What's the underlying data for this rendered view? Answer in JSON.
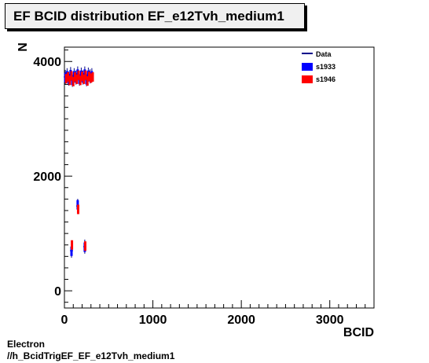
{
  "title": "EF BCID distribution EF_e12Tvh_medium1",
  "footer": {
    "line1": "Electron",
    "line2": "//h_BcidTrigEF_EF_e12Tvh_medium1"
  },
  "chart_data": {
    "type": "scatter",
    "title": "EF BCID distribution EF_e12Tvh_medium1",
    "xlabel": "BCID",
    "ylabel": "N",
    "xlim": [
      0,
      3500
    ],
    "ylim": [
      -300,
      4250
    ],
    "xticks": [
      0,
      1000,
      2000,
      3000
    ],
    "yticks": [
      0,
      2000,
      4000
    ],
    "legend": "top-right",
    "series": [
      {
        "name": "Data",
        "color": "#00008b",
        "style": "line-errorbar",
        "points": [
          {
            "x": 10,
            "y": 3730
          },
          {
            "x": 30,
            "y": 3760
          },
          {
            "x": 50,
            "y": 3700
          },
          {
            "x": 70,
            "y": 3780
          },
          {
            "x": 90,
            "y": 3680
          },
          {
            "x": 110,
            "y": 3760
          },
          {
            "x": 130,
            "y": 3720
          },
          {
            "x": 150,
            "y": 3790
          },
          {
            "x": 170,
            "y": 3700
          },
          {
            "x": 190,
            "y": 3770
          },
          {
            "x": 210,
            "y": 3720
          },
          {
            "x": 230,
            "y": 3790
          },
          {
            "x": 250,
            "y": 3690
          },
          {
            "x": 270,
            "y": 3770
          },
          {
            "x": 290,
            "y": 3740
          },
          {
            "x": 310,
            "y": 3760
          },
          {
            "x": 80,
            "y": 700
          },
          {
            "x": 150,
            "y": 1480
          },
          {
            "x": 230,
            "y": 770
          }
        ]
      },
      {
        "name": "s1933",
        "color": "#0000ff",
        "style": "box",
        "points": [
          {
            "x": 10,
            "y": 3720
          },
          {
            "x": 30,
            "y": 3750
          },
          {
            "x": 50,
            "y": 3690
          },
          {
            "x": 70,
            "y": 3770
          },
          {
            "x": 90,
            "y": 3670
          },
          {
            "x": 110,
            "y": 3750
          },
          {
            "x": 130,
            "y": 3710
          },
          {
            "x": 150,
            "y": 3780
          },
          {
            "x": 170,
            "y": 3690
          },
          {
            "x": 190,
            "y": 3760
          },
          {
            "x": 210,
            "y": 3710
          },
          {
            "x": 230,
            "y": 3780
          },
          {
            "x": 250,
            "y": 3680
          },
          {
            "x": 270,
            "y": 3760
          },
          {
            "x": 290,
            "y": 3730
          },
          {
            "x": 310,
            "y": 3750
          },
          {
            "x": 80,
            "y": 690
          },
          {
            "x": 150,
            "y": 1500
          },
          {
            "x": 230,
            "y": 760
          }
        ]
      },
      {
        "name": "s1946",
        "color": "#ff0000",
        "style": "box",
        "points": [
          {
            "x": 20,
            "y": 3700
          },
          {
            "x": 40,
            "y": 3730
          },
          {
            "x": 60,
            "y": 3670
          },
          {
            "x": 80,
            "y": 3750
          },
          {
            "x": 100,
            "y": 3650
          },
          {
            "x": 120,
            "y": 3730
          },
          {
            "x": 140,
            "y": 3690
          },
          {
            "x": 160,
            "y": 3760
          },
          {
            "x": 180,
            "y": 3670
          },
          {
            "x": 200,
            "y": 3740
          },
          {
            "x": 220,
            "y": 3690
          },
          {
            "x": 240,
            "y": 3760
          },
          {
            "x": 260,
            "y": 3660
          },
          {
            "x": 280,
            "y": 3740
          },
          {
            "x": 300,
            "y": 3710
          },
          {
            "x": 320,
            "y": 3730
          },
          {
            "x": 85,
            "y": 800
          },
          {
            "x": 155,
            "y": 1420
          },
          {
            "x": 235,
            "y": 780
          }
        ]
      }
    ]
  }
}
